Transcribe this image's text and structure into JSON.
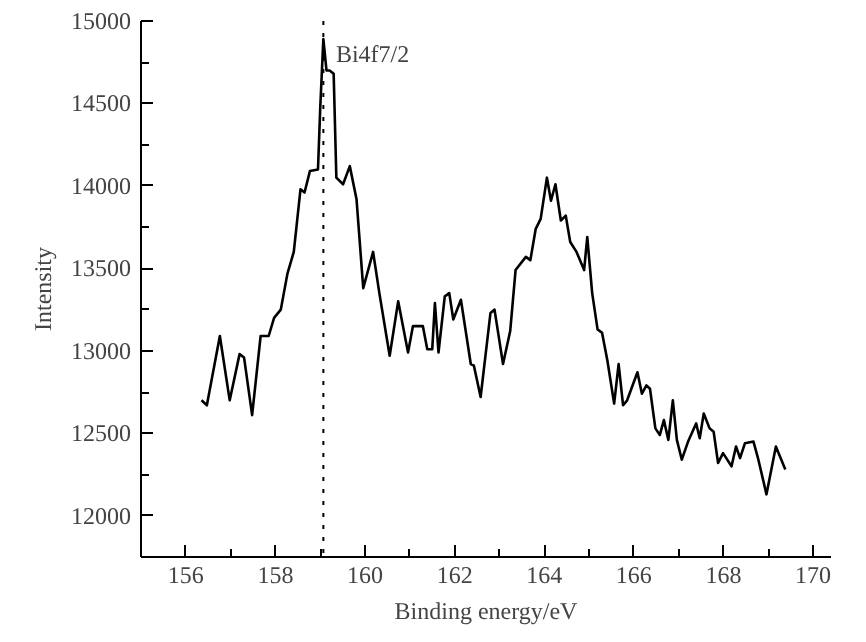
{
  "chart_data": {
    "type": "line",
    "xlabel": "Binding energy/eV",
    "ylabel": "Intensity",
    "xlim": [
      155,
      170.4
    ],
    "ylim": [
      11750,
      15000
    ],
    "xticks": [
      156,
      158,
      160,
      162,
      164,
      166,
      168,
      170
    ],
    "yticks": [
      12000,
      12500,
      13000,
      13500,
      14000,
      14500,
      15000
    ],
    "grid": false,
    "line_style": "solid",
    "ref_lines": [
      {
        "axis": "x",
        "value": 159.07,
        "line_style": "dotted",
        "color": "#000000"
      }
    ],
    "annotations": [
      {
        "text": "Bi4f7/2",
        "x": 159.35,
        "y": 14800
      }
    ],
    "series": [
      {
        "color": "#000000",
        "x": [
          156.35,
          156.47,
          156.76,
          156.98,
          157.2,
          157.3,
          157.48,
          157.67,
          157.85,
          157.97,
          158.12,
          158.27,
          158.41,
          158.56,
          158.65,
          158.77,
          158.95,
          159.0,
          159.07,
          159.14,
          159.21,
          159.3,
          159.36,
          159.51,
          159.66,
          159.81,
          159.96,
          160.18,
          160.32,
          160.55,
          160.74,
          160.96,
          161.07,
          161.29,
          161.39,
          161.5,
          161.56,
          161.64,
          161.78,
          161.88,
          161.97,
          162.14,
          162.36,
          162.43,
          162.58,
          162.8,
          162.89,
          163.08,
          163.24,
          163.36,
          163.59,
          163.69,
          163.81,
          163.92,
          164.06,
          164.15,
          164.25,
          164.37,
          164.48,
          164.58,
          164.72,
          164.89,
          164.96,
          165.07,
          165.19,
          165.29,
          165.41,
          165.56,
          165.66,
          165.76,
          165.85,
          166.08,
          166.18,
          166.28,
          166.36,
          166.48,
          166.58,
          166.67,
          166.77,
          166.87,
          166.96,
          167.07,
          167.21,
          167.39,
          167.47,
          167.56,
          167.69,
          167.78,
          167.88,
          167.99,
          168.18,
          168.28,
          168.37,
          168.48,
          168.67,
          168.77,
          168.96,
          169.17,
          169.38
        ],
        "values": [
          12700,
          12670,
          13090,
          12700,
          12980,
          12960,
          12610,
          13090,
          13090,
          13200,
          13250,
          13470,
          13600,
          13980,
          13960,
          14090,
          14100,
          14470,
          14890,
          14700,
          14700,
          14680,
          14050,
          14010,
          14120,
          13920,
          13380,
          13600,
          13350,
          12970,
          13300,
          12990,
          13150,
          13150,
          13010,
          13010,
          13290,
          12990,
          13330,
          13350,
          13190,
          13310,
          12920,
          12910,
          12720,
          13230,
          13250,
          12920,
          13120,
          13490,
          13570,
          13550,
          13740,
          13800,
          14050,
          13910,
          14010,
          13790,
          13820,
          13660,
          13600,
          13490,
          13690,
          13350,
          13130,
          13110,
          12940,
          12680,
          12920,
          12670,
          12700,
          12870,
          12740,
          12790,
          12770,
          12530,
          12490,
          12580,
          12460,
          12700,
          12460,
          12340,
          12450,
          12560,
          12470,
          12620,
          12530,
          12510,
          12320,
          12380,
          12300,
          12420,
          12350,
          12440,
          12450,
          12350,
          12130,
          12420,
          12280
        ]
      }
    ]
  }
}
